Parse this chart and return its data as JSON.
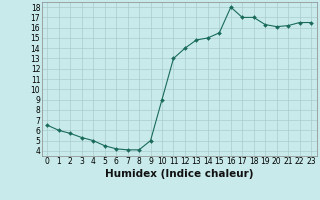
{
  "x": [
    0,
    1,
    2,
    3,
    4,
    5,
    6,
    7,
    8,
    9,
    10,
    11,
    12,
    13,
    14,
    15,
    16,
    17,
    18,
    19,
    20,
    21,
    22,
    23
  ],
  "y": [
    6.5,
    6.0,
    5.7,
    5.3,
    5.0,
    4.5,
    4.2,
    4.1,
    4.1,
    5.0,
    9.0,
    13.0,
    14.0,
    14.8,
    15.0,
    15.5,
    18.0,
    17.0,
    17.0,
    16.3,
    16.1,
    16.2,
    16.5,
    16.5
  ],
  "xlabel": "Humidex (Indice chaleur)",
  "xlim": [
    -0.5,
    23.5
  ],
  "ylim": [
    3.5,
    18.5
  ],
  "yticks": [
    4,
    5,
    6,
    7,
    8,
    9,
    10,
    11,
    12,
    13,
    14,
    15,
    16,
    17,
    18
  ],
  "xticks": [
    0,
    1,
    2,
    3,
    4,
    5,
    6,
    7,
    8,
    9,
    10,
    11,
    12,
    13,
    14,
    15,
    16,
    17,
    18,
    19,
    20,
    21,
    22,
    23
  ],
  "line_color": "#1a6b5a",
  "marker_color": "#1a6b5a",
  "bg_color": "#c8eaea",
  "grid_color": "#aacccc",
  "tick_fontsize": 5.5,
  "xlabel_fontsize": 7.5,
  "marker_size": 2.0,
  "line_width": 0.8
}
